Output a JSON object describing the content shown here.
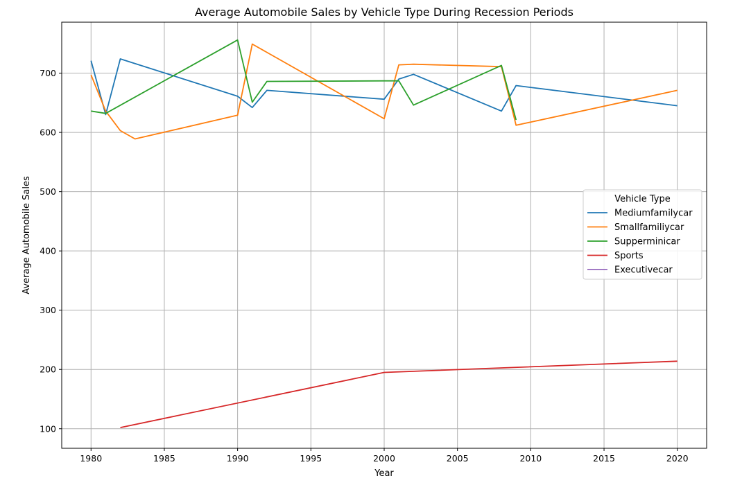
{
  "chart_data": {
    "type": "line",
    "title": "Average Automobile Sales by Vehicle Type During Recession Periods",
    "xlabel": "Year",
    "ylabel": "Average Automobile Sales",
    "xlim": [
      1978,
      2022
    ],
    "ylim": [
      67,
      786
    ],
    "xticks": [
      1980,
      1985,
      1990,
      1995,
      2000,
      2005,
      2010,
      2015,
      2020
    ],
    "yticks": [
      100,
      200,
      300,
      400,
      500,
      600,
      700
    ],
    "grid": true,
    "legend": {
      "title": "Vehicle Type",
      "placement": "center-right"
    },
    "series": [
      {
        "name": "Mediumfamilycar",
        "color": "#1f77b4",
        "x": [
          1980,
          1981,
          1982,
          1990,
          1991,
          1992,
          2000,
          2001,
          2002,
          2008,
          2009,
          2020
        ],
        "y": [
          721,
          630,
          724,
          661,
          642,
          671,
          656,
          690,
          698,
          636,
          679,
          645
        ]
      },
      {
        "name": "Smallfamiliycar",
        "color": "#ff7f0e",
        "x": [
          1980,
          1981,
          1982,
          1983,
          1990,
          1991,
          2000,
          2001,
          2002,
          2008,
          2009,
          2020
        ],
        "y": [
          697,
          636,
          603,
          589,
          629,
          749,
          623,
          714,
          715,
          711,
          612,
          671
        ]
      },
      {
        "name": "Supperminicar",
        "color": "#2ca02c",
        "x": [
          1980,
          1981,
          1990,
          1991,
          1992,
          2000,
          2001,
          2002,
          2008,
          2009
        ],
        "y": [
          636,
          632,
          756,
          651,
          686,
          687,
          687,
          646,
          713,
          621
        ]
      },
      {
        "name": "Sports",
        "color": "#d62728",
        "x": [
          1982,
          2000,
          2020
        ],
        "y": [
          102,
          195,
          214
        ]
      },
      {
        "name": "Executivecar",
        "color": "#9467bd",
        "x": [],
        "y": []
      }
    ]
  }
}
